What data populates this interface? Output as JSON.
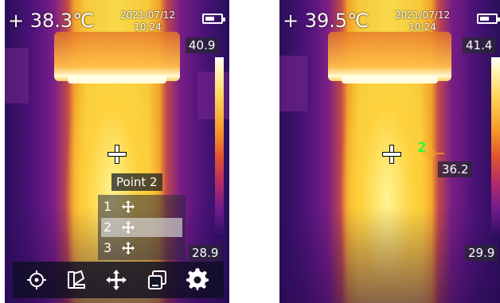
{
  "screen1": {
    "center_temp": "+ 38.3℃",
    "date": "2021/07/12",
    "time": "10:24",
    "scale_max": "40.9",
    "scale_min": "28.9",
    "battery_level": 0.6,
    "point_label": "Point 2",
    "menu": [
      {
        "label": "1",
        "icon": "move-icon"
      },
      {
        "label": "2",
        "icon": "move-icon"
      },
      {
        "label": "3",
        "icon": "move-icon"
      }
    ],
    "selected_point": "2",
    "toolbar": [
      "target-icon",
      "palette-icon",
      "move-icon",
      "layers-icon",
      "gear-icon"
    ]
  },
  "screen2": {
    "center_temp": "+ 39.5℃",
    "date": "2021/07/12",
    "time": "10:24",
    "scale_max": "41.4",
    "scale_min": "29.9",
    "battery_level": 0.6,
    "spot_number": "2",
    "spot_value": "36.2"
  },
  "colors": {
    "spot_green": "#3cf53c",
    "spot_orange": "#f5a623",
    "text": "#ffffff"
  }
}
